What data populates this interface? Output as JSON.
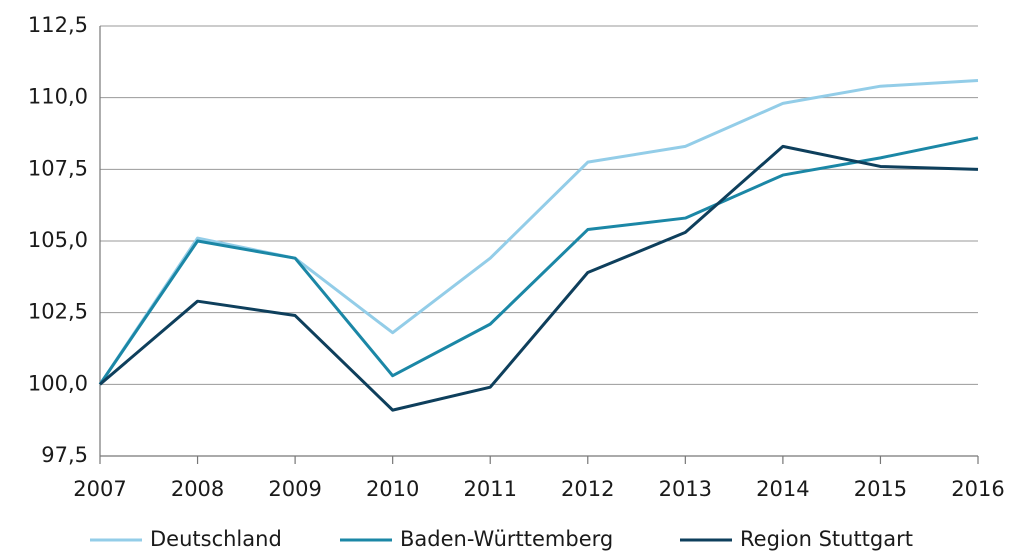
{
  "chart_data": {
    "type": "line",
    "x": [
      2007,
      2008,
      2009,
      2010,
      2011,
      2012,
      2013,
      2014,
      2015,
      2016
    ],
    "xlim": [
      2007,
      2016
    ],
    "xticks": [
      2007,
      2008,
      2009,
      2010,
      2011,
      2012,
      2013,
      2014,
      2015,
      2016
    ],
    "ylim": [
      97.5,
      112.5
    ],
    "yticks": [
      {
        "value": 97.5,
        "label": "97,5"
      },
      {
        "value": 100,
        "label": "100,0"
      },
      {
        "value": 102.5,
        "label": "102,5"
      },
      {
        "value": 105,
        "label": "105,0"
      },
      {
        "value": 107.5,
        "label": "107,5"
      },
      {
        "value": 110,
        "label": "110,0"
      },
      {
        "value": 112.5,
        "label": "112,5"
      }
    ],
    "grid": true,
    "legend": "bottom",
    "series": [
      {
        "name": "Deutschland",
        "color": "#93cde8",
        "values": [
          100,
          105.1,
          104.4,
          101.8,
          104.4,
          107.75,
          108.3,
          109.8,
          110.4,
          110.6
        ]
      },
      {
        "name": "Baden-Württemberg",
        "color": "#1b87a6",
        "values": [
          100,
          105.0,
          104.4,
          100.3,
          102.1,
          105.4,
          105.8,
          107.3,
          107.9,
          108.6
        ]
      },
      {
        "name": "Region Stuttgart",
        "color": "#0e3f5c",
        "values": [
          100,
          102.9,
          102.4,
          99.1,
          99.9,
          103.9,
          105.3,
          108.3,
          107.6,
          107.5
        ]
      }
    ]
  }
}
